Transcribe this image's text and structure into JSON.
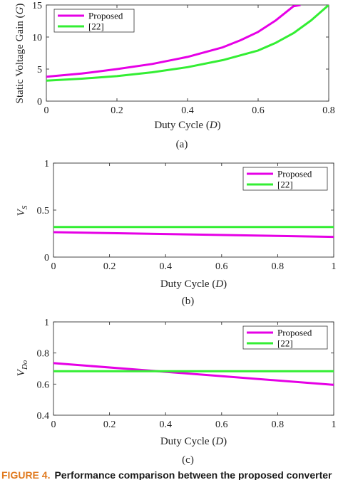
{
  "chart_data": [
    {
      "type": "line",
      "ylabel_main": "Static Voltage Gain (",
      "ylabel_var": "G",
      "ylabel_close": ")",
      "xlabel_main": "Duty Cycle (",
      "xlabel_var": "D",
      "xlabel_close": ")",
      "xlim": [
        0,
        0.8
      ],
      "ylim": [
        0,
        15
      ],
      "xticks": [
        "0",
        "0.2",
        "0.4",
        "0.6",
        "0.8"
      ],
      "yticks": [
        "0",
        "5",
        "10",
        "15"
      ],
      "legend_position": "top-left",
      "subcaption": "(a)",
      "series": [
        {
          "name": "Proposed",
          "color": "#e600e6",
          "x": [
            0,
            0.1,
            0.2,
            0.3,
            0.4,
            0.5,
            0.55,
            0.6,
            0.65,
            0.7,
            0.72
          ],
          "y": [
            3.8,
            4.3,
            5.0,
            5.8,
            6.9,
            8.4,
            9.5,
            10.8,
            12.6,
            14.8,
            15
          ]
        },
        {
          "name": "[22]",
          "color": "#33ee33",
          "x": [
            0,
            0.1,
            0.2,
            0.3,
            0.4,
            0.5,
            0.6,
            0.65,
            0.7,
            0.75,
            0.8
          ],
          "y": [
            3.2,
            3.5,
            3.9,
            4.5,
            5.3,
            6.4,
            7.9,
            9.1,
            10.6,
            12.6,
            15
          ]
        }
      ]
    },
    {
      "type": "line",
      "ylabel_main": "V",
      "ylabel_sub": "S",
      "xlabel_main": "Duty Cycle (",
      "xlabel_var": "D",
      "xlabel_close": ")",
      "xlim": [
        0,
        1
      ],
      "ylim": [
        0,
        1
      ],
      "xticks": [
        "0",
        "0.2",
        "0.4",
        "0.6",
        "0.8",
        "1"
      ],
      "yticks": [
        "0",
        "0.5",
        "1"
      ],
      "legend_position": "top-right",
      "subcaption": "(b)",
      "series": [
        {
          "name": "Proposed",
          "color": "#e600e6",
          "x": [
            0,
            1
          ],
          "y": [
            0.265,
            0.215
          ]
        },
        {
          "name": "[22]",
          "color": "#33ee33",
          "x": [
            0,
            1
          ],
          "y": [
            0.32,
            0.32
          ]
        }
      ]
    },
    {
      "type": "line",
      "ylabel_main": "V",
      "ylabel_sub": "Do",
      "xlabel_main": "Duty Cycle (",
      "xlabel_var": "D",
      "xlabel_close": ")",
      "xlim": [
        0,
        1
      ],
      "ylim": [
        0.4,
        1
      ],
      "xticks": [
        "0",
        "0.2",
        "0.4",
        "0.6",
        "0.8",
        "1"
      ],
      "yticks": [
        "0.4",
        "0.6",
        "0.8",
        "1"
      ],
      "legend_position": "top-right",
      "subcaption": "(c)",
      "series": [
        {
          "name": "Proposed",
          "color": "#e600e6",
          "x": [
            0,
            1
          ],
          "y": [
            0.735,
            0.595
          ]
        },
        {
          "name": "[22]",
          "color": "#33ee33",
          "x": [
            0,
            1
          ],
          "y": [
            0.683,
            0.683
          ]
        }
      ]
    }
  ],
  "caption": {
    "label": "FIGURE 4.",
    "text": "Performance comparison between the proposed converter",
    "label_color": "#e07a1f",
    "text_color": "#1a1a1a"
  }
}
